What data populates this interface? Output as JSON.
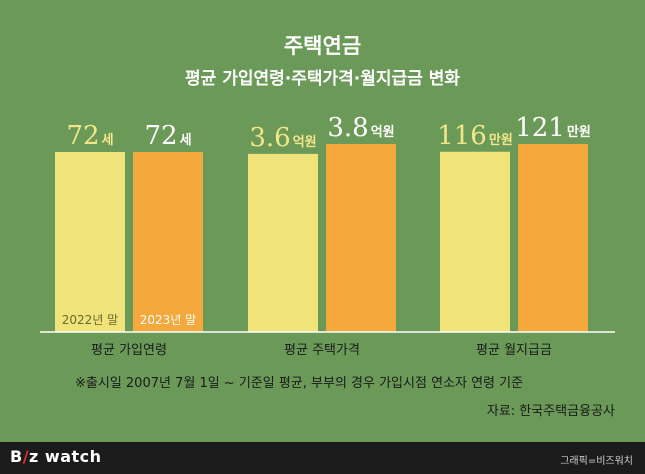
{
  "header": {
    "title": "주택연금",
    "subtitle": "평균 가입연령·주택가격·월지급금 변화"
  },
  "chart_data": {
    "type": "bar",
    "title": "주택연금",
    "subtitle": "평균 가입연령·주택가격·월지급금 변화",
    "categories": [
      "평균 가입연령",
      "평균 주택가격",
      "평균 월지급금"
    ],
    "series": [
      {
        "name": "2022년 말",
        "values": [
          72,
          3.6,
          116
        ],
        "labels": [
          "72",
          "3.6",
          "116"
        ]
      },
      {
        "name": "2023년 말",
        "values": [
          72,
          3.8,
          121
        ],
        "labels": [
          "72",
          "3.8",
          "121"
        ]
      }
    ],
    "units": [
      "세",
      "억원",
      "만원"
    ],
    "colors": {
      "series1": "#f0e37a",
      "series2": "#f5a93c",
      "label1": "#f3e68a",
      "label2": "#ffffff"
    }
  },
  "footnote": "※출시일 2007년 7월 1일 ~ 기준일 평균, 부부의 경우 가입시점 연소자 연령 기준",
  "source": "자료: 한국주택금융공사",
  "footer": {
    "logo_b": "B",
    "logo_mark": "/",
    "logo_rest": "z watch",
    "credit": "그래픽=비즈워치"
  }
}
